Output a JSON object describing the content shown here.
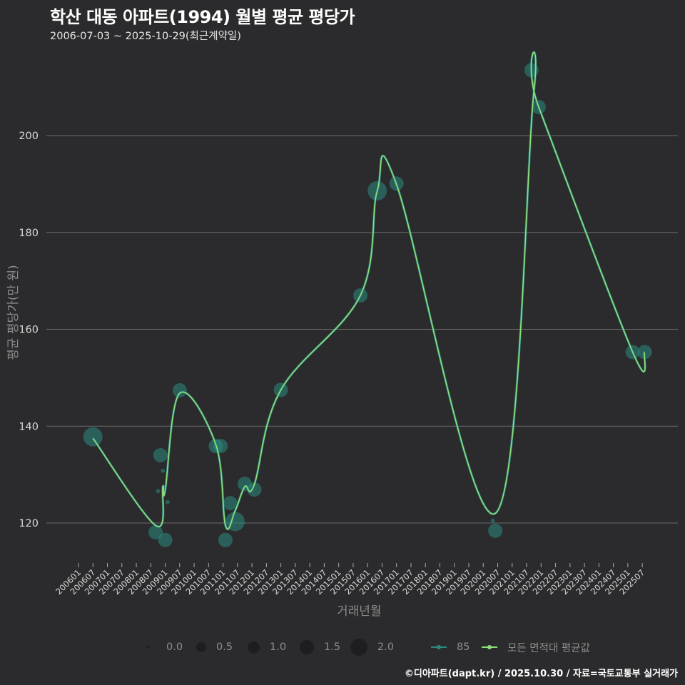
{
  "header": {
    "title": "학산 대동 아파트(1994) 월별 평균 평당가",
    "subtitle": "2006-07-03 ~ 2025-10-29(최근계약일)"
  },
  "caption": "©디아파트(dapt.kr) / 2025.10.30 / 자료=국토교통부 실거래가",
  "colors": {
    "background": "#2b2b2d",
    "grid": "#6a6a6a",
    "series_85": "#2a8a80",
    "series_avg": "#8fe07a",
    "text_muted": "#8d8d8d"
  },
  "legend": {
    "size_title": "",
    "size_items": [
      {
        "label": "0.0",
        "r": 2
      },
      {
        "label": "0.5",
        "r": 6
      },
      {
        "label": "1.0",
        "r": 8
      },
      {
        "label": "1.5",
        "r": 10
      },
      {
        "label": "2.0",
        "r": 12
      }
    ],
    "series_items": [
      {
        "label": "85",
        "color": "#2a8a80"
      },
      {
        "label": "모든 면적대 평균값",
        "color": "#8fe07a"
      }
    ]
  },
  "chart_data": {
    "type": "scatter",
    "title": "학산 대동 아파트(1994) 월별 평균 평당가",
    "subtitle": "2006-07-03 ~ 2025-10-29(최근계약일)",
    "xlabel": "거래년월",
    "ylabel": "평균 평당가(만 원)",
    "ylim": [
      112,
      216
    ],
    "yticks": [
      120,
      140,
      160,
      180,
      200
    ],
    "grid": true,
    "legend_position": "bottom",
    "x_tick_labels": [
      "200601",
      "200607",
      "200701",
      "200707",
      "200801",
      "200807",
      "200901",
      "200907",
      "201001",
      "201007",
      "201101",
      "201107",
      "201201",
      "201207",
      "201301",
      "201307",
      "201401",
      "201407",
      "201501",
      "201507",
      "201601",
      "201607",
      "201701",
      "201707",
      "201801",
      "201807",
      "201901",
      "201907",
      "202001",
      "202007",
      "202101",
      "202107",
      "202201",
      "202207",
      "202301",
      "202307",
      "202401",
      "202407",
      "202501",
      "202507"
    ],
    "series": [
      {
        "name": "85",
        "kind": "bubble",
        "points": [
          {
            "x": "200607",
            "y": 137.8,
            "size": 1.5
          },
          {
            "x": "200809",
            "y": 118.1,
            "size": 1.0
          },
          {
            "x": "200810",
            "y": 126.6,
            "size": 0.0
          },
          {
            "x": "200811",
            "y": 134.0,
            "size": 1.0
          },
          {
            "x": "200812",
            "y": 130.8,
            "size": 0.0
          },
          {
            "x": "200901",
            "y": 116.5,
            "size": 1.0
          },
          {
            "x": "200902",
            "y": 124.3,
            "size": 0.0
          },
          {
            "x": "200907",
            "y": 147.4,
            "size": 1.0
          },
          {
            "x": "201010",
            "y": 135.9,
            "size": 1.0
          },
          {
            "x": "201012",
            "y": 135.9,
            "size": 1.0
          },
          {
            "x": "201102",
            "y": 116.5,
            "size": 1.0
          },
          {
            "x": "201104",
            "y": 124.1,
            "size": 1.0
          },
          {
            "x": "201106",
            "y": 120.3,
            "size": 1.5
          },
          {
            "x": "201110",
            "y": 128.1,
            "size": 1.0
          },
          {
            "x": "201202",
            "y": 126.9,
            "size": 1.0
          },
          {
            "x": "201301",
            "y": 147.5,
            "size": 1.0
          },
          {
            "x": "201510",
            "y": 167.0,
            "size": 1.0
          },
          {
            "x": "201605",
            "y": 188.6,
            "size": 1.5
          },
          {
            "x": "201701",
            "y": 190.1,
            "size": 1.0
          },
          {
            "x": "202006",
            "y": 118.4,
            "size": 1.0
          },
          {
            "x": "202005",
            "y": 120.5,
            "size": 0.0
          },
          {
            "x": "202109",
            "y": 213.5,
            "size": 1.0
          },
          {
            "x": "202110",
            "y": 210.8,
            "size": 0.0
          },
          {
            "x": "202112",
            "y": 205.9,
            "size": 1.0
          },
          {
            "x": "202503",
            "y": 155.3,
            "size": 1.0
          },
          {
            "x": "202508",
            "y": 155.3,
            "size": 1.0
          }
        ]
      },
      {
        "name": "모든 면적대 평균값",
        "kind": "smooth-line",
        "points": [
          {
            "x": "200607",
            "y": 137.5
          },
          {
            "x": "200809",
            "y": 119.5
          },
          {
            "x": "200812",
            "y": 127.5
          },
          {
            "x": "200901",
            "y": 126.8
          },
          {
            "x": "200907",
            "y": 146.8
          },
          {
            "x": "201010",
            "y": 136.2
          },
          {
            "x": "201102",
            "y": 119.5
          },
          {
            "x": "201106",
            "y": 122.5
          },
          {
            "x": "201110",
            "y": 127.5
          },
          {
            "x": "201202",
            "y": 128.0
          },
          {
            "x": "201301",
            "y": 147.5
          },
          {
            "x": "201510",
            "y": 167.0
          },
          {
            "x": "201605",
            "y": 188.6
          },
          {
            "x": "201701",
            "y": 189.9
          },
          {
            "x": "202006",
            "y": 122.0
          },
          {
            "x": "202110",
            "y": 209.0
          },
          {
            "x": "202112",
            "y": 205.9
          },
          {
            "x": "202503",
            "y": 155.3
          },
          {
            "x": "202508",
            "y": 155.3
          }
        ]
      }
    ]
  }
}
